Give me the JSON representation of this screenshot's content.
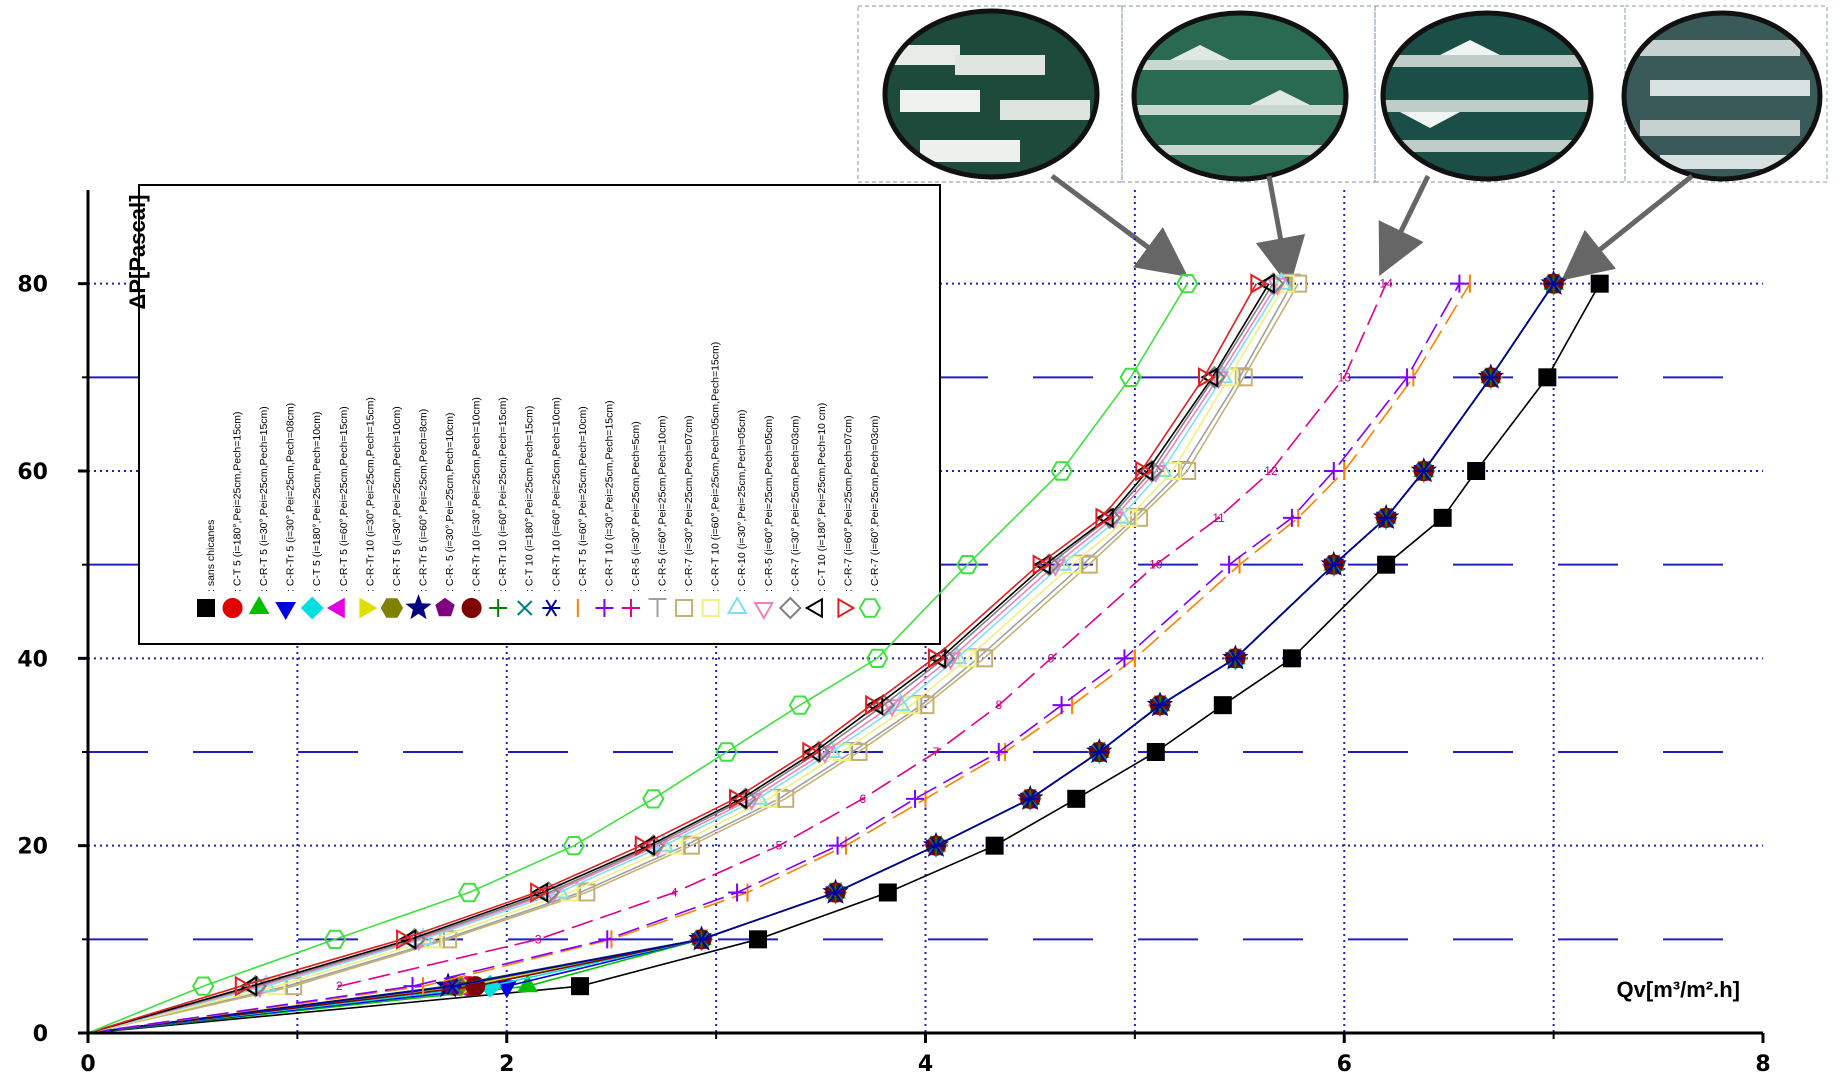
{
  "chart_data": {
    "type": "line",
    "y_label": "ΔP[Pascal]",
    "x_label": "Qv[m³/m².h]",
    "xlim": [
      0,
      8
    ],
    "ylim": [
      0,
      90
    ],
    "xticks": [
      0,
      2,
      4,
      6,
      8
    ],
    "yticks": [
      0,
      20,
      40,
      60,
      80
    ],
    "xminor": [
      1,
      3,
      5,
      7
    ],
    "yminor": [
      10,
      30,
      50,
      70
    ],
    "grid": true,
    "series": [
      {
        "name": ": sans chicanes",
        "color": "#000000",
        "marker": "square",
        "x": [
          0,
          2.35,
          3.2,
          3.82,
          4.33,
          4.72,
          5.1,
          5.42,
          5.75,
          6.2,
          6.47,
          6.63,
          6.97,
          7.22
        ],
        "values": [
          0,
          5,
          10,
          15,
          20,
          25,
          30,
          35,
          40,
          50,
          55,
          60,
          70,
          80
        ]
      },
      {
        "name": ": C-T 5 (i=180°,Pei=25cm,Pech=15cm)",
        "color": "#e00000",
        "marker": "circle",
        "x": [
          0,
          1.82,
          2.93,
          3.57,
          4.05,
          4.5,
          4.83,
          5.12,
          5.48,
          5.95,
          6.2,
          6.38,
          6.7,
          7.0
        ],
        "values": [
          0,
          5,
          10,
          15,
          20,
          25,
          30,
          35,
          40,
          50,
          55,
          60,
          70,
          80
        ]
      },
      {
        "name": ": C-R-T 5 (i=30°,Pei=25cm,Pech=15cm)",
        "color": "#00c000",
        "marker": "triangle",
        "x": [
          0,
          2.1,
          2.93,
          3.57,
          4.05,
          4.5,
          4.83,
          5.12,
          5.48,
          5.95,
          6.2,
          6.38,
          6.7,
          7.0
        ],
        "values": [
          0,
          5,
          10,
          15,
          20,
          25,
          30,
          35,
          40,
          50,
          55,
          60,
          70,
          80
        ]
      },
      {
        "name": ": C-R-Tr 5 (i=30°,Pei=25cm,Pech=08cm)",
        "color": "#0000e0",
        "marker": "tri-down",
        "x": [
          0,
          2.0,
          2.93,
          3.57,
          4.05,
          4.5,
          4.83,
          5.12,
          5.48,
          5.95,
          6.2,
          6.38,
          6.7,
          7.0
        ],
        "values": [
          0,
          5,
          10,
          15,
          20,
          25,
          30,
          35,
          40,
          50,
          55,
          60,
          70,
          80
        ]
      },
      {
        "name": ": C-T 5 (i=180°,Pei=25cm,Pech=10cm)",
        "color": "#00e0e0",
        "marker": "diamond",
        "x": [
          0,
          1.92,
          2.93,
          3.57,
          4.05,
          4.5,
          4.83,
          5.12,
          5.48,
          5.95,
          6.2,
          6.38,
          6.7,
          7.0
        ],
        "values": [
          0,
          5,
          10,
          15,
          20,
          25,
          30,
          35,
          40,
          50,
          55,
          60,
          70,
          80
        ]
      },
      {
        "name": ": C-R-T 5 (i=60°,Pei=25cm,Pech=15cm)",
        "color": "#e000e0",
        "marker": "tri-left",
        "x": [
          0,
          1.78,
          2.93,
          3.57,
          4.05,
          4.5,
          4.83,
          5.12,
          5.48,
          5.95,
          6.2,
          6.38,
          6.7,
          7.0
        ],
        "values": [
          0,
          5,
          10,
          15,
          20,
          25,
          30,
          35,
          40,
          50,
          55,
          60,
          70,
          80
        ]
      },
      {
        "name": ": C-R-Tr 10 (i=30°,Pei=25cm,Pech=15cm)",
        "color": "#e0e000",
        "marker": "tri-right",
        "x": [
          0,
          1.8,
          2.93,
          3.57,
          4.05,
          4.5,
          4.83,
          5.12,
          5.48,
          5.95,
          6.2,
          6.38,
          6.7,
          7.0
        ],
        "values": [
          0,
          5,
          10,
          15,
          20,
          25,
          30,
          35,
          40,
          50,
          55,
          60,
          70,
          80
        ]
      },
      {
        "name": ": C-R-T 5 (i=30°,Pei=25cm,Pech=10cm)",
        "color": "#808000",
        "marker": "hexagon",
        "x": [
          0,
          1.76,
          2.93,
          3.57,
          4.05,
          4.5,
          4.83,
          5.12,
          5.48,
          5.95,
          6.2,
          6.38,
          6.7,
          7.0
        ],
        "values": [
          0,
          5,
          10,
          15,
          20,
          25,
          30,
          35,
          40,
          50,
          55,
          60,
          70,
          80
        ]
      },
      {
        "name": ": C-R-Tr 5 (i=60°,Pei=25cm,Pech=8cm)",
        "color": "#000080",
        "marker": "star",
        "x": [
          0,
          1.72,
          2.93,
          3.57,
          4.05,
          4.5,
          4.83,
          5.12,
          5.48,
          5.95,
          6.2,
          6.38,
          6.7,
          7.0
        ],
        "values": [
          0,
          5,
          10,
          15,
          20,
          25,
          30,
          35,
          40,
          50,
          55,
          60,
          70,
          80
        ]
      },
      {
        "name": ": C-R- 5 (i=30°,Pei=25cm,Pech=10cm)",
        "color": "#800080",
        "marker": "pentagon",
        "x": [
          0,
          1.74,
          2.93,
          3.57,
          4.05,
          4.5,
          4.83,
          5.12,
          5.48,
          5.95,
          6.2,
          6.38,
          6.7,
          7.0
        ],
        "values": [
          0,
          5,
          10,
          15,
          20,
          25,
          30,
          35,
          40,
          50,
          55,
          60,
          70,
          80
        ]
      },
      {
        "name": ": C-R-Tr 10 (i=30°,Pei=25cm,Pech=10cm)",
        "color": "#800000",
        "marker": "circle",
        "x": [
          0,
          1.85,
          2.93,
          3.57,
          4.05,
          4.5,
          4.83,
          5.12,
          5.48,
          5.95,
          6.2,
          6.38,
          6.7,
          7.0
        ],
        "values": [
          0,
          5,
          10,
          15,
          20,
          25,
          30,
          35,
          40,
          50,
          55,
          60,
          70,
          80
        ]
      },
      {
        "name": ": C-R-Tr 10 (i=60°,Pei=25cm,Pech=15cm)",
        "color": "#008000",
        "marker": "plus",
        "x": [
          0,
          1.73,
          2.93,
          3.57,
          4.05,
          4.5,
          4.83,
          5.12,
          5.48,
          5.95,
          6.2,
          6.38,
          6.7,
          7.0
        ],
        "values": [
          0,
          5,
          10,
          15,
          20,
          25,
          30,
          35,
          40,
          50,
          55,
          60,
          70,
          80
        ]
      },
      {
        "name": ": C-T 10 (i=180°,Pei=25cm,Pech=15cm)",
        "color": "#008080",
        "marker": "cross",
        "x": [
          0,
          1.75,
          2.93,
          3.57,
          4.05,
          4.5,
          4.83,
          5.12,
          5.48,
          5.95,
          6.2,
          6.38,
          6.7,
          7.0
        ],
        "values": [
          0,
          5,
          10,
          15,
          20,
          25,
          30,
          35,
          40,
          50,
          55,
          60,
          70,
          80
        ]
      },
      {
        "name": ": C-R-Tr 10 (i=60°,Pei=25cm,Pech=10cm)",
        "color": "#0000a0",
        "marker": "asterisk",
        "x": [
          0,
          1.74,
          2.93,
          3.57,
          4.05,
          4.5,
          4.83,
          5.12,
          5.48,
          5.95,
          6.2,
          6.38,
          6.7,
          7.0
        ],
        "values": [
          0,
          5,
          10,
          15,
          20,
          25,
          30,
          35,
          40,
          50,
          55,
          60,
          70,
          80
        ]
      },
      {
        "name": ": C-R-T 5 (i=60°,Pei=25cm,Pech=10cm)",
        "color": "#ff8000",
        "marker": "vbar",
        "dashed": true,
        "x": [
          0,
          1.6,
          2.5,
          3.15,
          3.62,
          4.0,
          4.38,
          4.7,
          5.0,
          5.5,
          5.78,
          6.0,
          6.33,
          6.6
        ],
        "values": [
          0,
          5,
          10,
          15,
          20,
          25,
          30,
          35,
          40,
          50,
          55,
          60,
          70,
          80
        ]
      },
      {
        "name": ": C-R-T 10 (i=30°,Pei=25cm,Pech=15cm)",
        "color": "#8000ff",
        "marker": "plus",
        "dashed": true,
        "x": [
          0,
          1.55,
          2.48,
          3.1,
          3.58,
          3.95,
          4.35,
          4.65,
          4.95,
          5.45,
          5.75,
          5.95,
          6.3,
          6.55
        ],
        "values": [
          0,
          5,
          10,
          15,
          20,
          25,
          30,
          35,
          40,
          50,
          55,
          60,
          70,
          80
        ]
      },
      {
        "name": ": C-R-5 (i=30°,Pei=25cm,Pech=5cm)",
        "color": "#e0008a",
        "marker": "plus",
        "dashed": true,
        "x": [
          1.2,
          2.15,
          2.8,
          3.3,
          3.7,
          4.05,
          4.35,
          4.6,
          5.1,
          5.4,
          5.65,
          6.0,
          6.2
        ],
        "values": [
          5,
          10,
          15,
          20,
          25,
          30,
          35,
          40,
          50,
          55,
          60,
          70,
          80
        ],
        "point_labels": [
          "2",
          "3",
          "4",
          "5",
          "6",
          "7",
          "8",
          "9",
          "10",
          "11",
          "12",
          "13",
          "14"
        ]
      },
      {
        "name": ": C-R-5 (i=60°,Pei=25cm,Pech=10cm)",
        "color": "#a0a0a0",
        "marker": "tee",
        "x": [
          0,
          0.95,
          1.7,
          2.35,
          2.85,
          3.3,
          3.65,
          3.98,
          4.25,
          4.75,
          5.0,
          5.22,
          5.5,
          5.75
        ],
        "values": [
          0,
          5,
          10,
          15,
          20,
          25,
          30,
          35,
          40,
          50,
          55,
          60,
          70,
          80
        ]
      },
      {
        "name": ": C-R-7 (i=30°,Pei=25cm,Pech=07cm)",
        "color": "#c8b070",
        "marker": "square",
        "open": true,
        "x": [
          0,
          0.98,
          1.72,
          2.38,
          2.88,
          3.33,
          3.68,
          4.0,
          4.28,
          4.78,
          5.02,
          5.25,
          5.52,
          5.78
        ],
        "values": [
          0,
          5,
          10,
          15,
          20,
          25,
          30,
          35,
          40,
          50,
          55,
          60,
          70,
          80
        ]
      },
      {
        "name": ": C-R-T 10 (i=60°,Pei=25cm,Pech=05cm,Pech=15cm)",
        "color": "#f0f080",
        "marker": "square",
        "open": true,
        "x": [
          0,
          0.9,
          1.65,
          2.3,
          2.8,
          3.25,
          3.6,
          3.93,
          4.2,
          4.7,
          4.97,
          5.18,
          5.45,
          5.72
        ],
        "values": [
          0,
          5,
          10,
          15,
          20,
          25,
          30,
          35,
          40,
          50,
          55,
          60,
          70,
          80
        ]
      },
      {
        "name": ": C-R-10 (i=30°,Pei=25cm,Pech=05cm)",
        "color": "#80e0f0",
        "marker": "triangle",
        "open": true,
        "x": [
          0,
          0.85,
          1.6,
          2.25,
          2.75,
          3.2,
          3.55,
          3.88,
          4.15,
          4.65,
          4.93,
          5.13,
          5.42,
          5.7
        ],
        "values": [
          0,
          5,
          10,
          15,
          20,
          25,
          30,
          35,
          40,
          50,
          55,
          60,
          70,
          80
        ]
      },
      {
        "name": ": C-R-5 (i=60°,Pei=25cm,Pech=05cm)",
        "color": "#f080c0",
        "marker": "tri-down",
        "open": true,
        "x": [
          0,
          0.82,
          1.58,
          2.22,
          2.72,
          3.17,
          3.52,
          3.84,
          4.12,
          4.62,
          4.9,
          5.1,
          5.4,
          5.68
        ],
        "values": [
          0,
          5,
          10,
          15,
          20,
          25,
          30,
          35,
          40,
          50,
          55,
          60,
          70,
          80
        ]
      },
      {
        "name": ": C-R-7 (i=30°,Pei=25cm,Pech=03cm)",
        "color": "#808080",
        "marker": "diamond",
        "open": true,
        "x": [
          0,
          0.8,
          1.56,
          2.2,
          2.7,
          3.14,
          3.49,
          3.8,
          4.09,
          4.59,
          4.88,
          5.08,
          5.38,
          5.66
        ],
        "values": [
          0,
          5,
          10,
          15,
          20,
          25,
          30,
          35,
          40,
          50,
          55,
          60,
          70,
          80
        ]
      },
      {
        "name": ": C-T 10 (i=180°,Pei=25cm,Pech=10 cm)",
        "color": "#000000",
        "marker": "tri-left",
        "open": true,
        "x": [
          0,
          0.78,
          1.54,
          2.17,
          2.68,
          3.12,
          3.47,
          3.77,
          4.07,
          4.57,
          4.87,
          5.06,
          5.37,
          5.64
        ],
        "values": [
          0,
          5,
          10,
          15,
          20,
          25,
          30,
          35,
          40,
          50,
          55,
          60,
          70,
          80
        ]
      },
      {
        "name": ": C-R-7 (i=60°,Pei=25cm,Pech=07cm)",
        "color": "#e02020",
        "marker": "tri-right",
        "open": true,
        "x": [
          0,
          0.73,
          1.5,
          2.14,
          2.64,
          3.09,
          3.44,
          3.74,
          4.04,
          4.54,
          4.84,
          5.03,
          5.33,
          5.58
        ],
        "values": [
          0,
          5,
          10,
          15,
          20,
          25,
          30,
          35,
          40,
          50,
          55,
          60,
          70,
          80
        ]
      },
      {
        "name": ": C-R-7 (i=60°,Pei=25cm,Pech=03cm)",
        "color": "#40e040",
        "marker": "hexagon",
        "open": true,
        "x": [
          0,
          0.55,
          1.18,
          1.82,
          2.32,
          2.7,
          3.05,
          3.4,
          3.77,
          4.2,
          4.65,
          4.98,
          5.25
        ],
        "values": [
          0,
          5,
          10,
          15,
          20,
          25,
          30,
          35,
          40,
          50,
          60,
          70,
          80
        ]
      }
    ]
  }
}
